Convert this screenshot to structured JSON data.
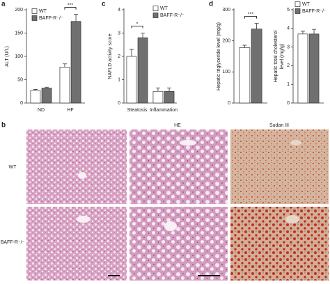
{
  "chart_data": [
    {
      "type": "bar",
      "panel_label": "a",
      "ylabel": "ALT (U/L)",
      "categories": [
        "ND",
        "HF"
      ],
      "series": [
        {
          "name": "WT",
          "color": "#ffffff",
          "values": [
            27,
            77
          ],
          "errors": [
            2,
            7
          ]
        },
        {
          "name": "BAFF-R⁻/⁻",
          "color": "#707070",
          "values": [
            32,
            175
          ],
          "errors": [
            2,
            15
          ]
        }
      ],
      "ylim": [
        0,
        200
      ],
      "yticks": [
        0,
        50,
        100,
        150,
        200
      ],
      "legend": true,
      "annotation": "***"
    },
    {
      "type": "bar",
      "panel_label": "c",
      "ylabel": "NAFLD activity score",
      "categories": [
        "Steatosis",
        "Inflammation"
      ],
      "series": [
        {
          "name": "WT",
          "color": "#ffffff",
          "values": [
            2.0,
            0.5
          ],
          "errors": [
            0.3,
            0.15
          ]
        },
        {
          "name": "BAFF-R⁻/⁻",
          "color": "#707070",
          "values": [
            2.8,
            0.5
          ],
          "errors": [
            0.2,
            0.15
          ]
        }
      ],
      "ylim": [
        0,
        4
      ],
      "yticks": [
        0,
        1,
        2,
        3,
        4
      ],
      "legend": true,
      "annotation": "*"
    },
    {
      "type": "bar",
      "panel_label": "d",
      "ylabel": "Hepatic triglyceride level (mg/g)",
      "categories": [
        null
      ],
      "series": [
        {
          "name": "WT",
          "color": "#ffffff",
          "values": [
            178
          ],
          "errors": [
            8
          ]
        },
        {
          "name": "BAFF-R⁻/⁻",
          "color": "#707070",
          "values": [
            238
          ],
          "errors": [
            18
          ]
        }
      ],
      "ylim": [
        0,
        300
      ],
      "yticks": [
        0,
        100,
        200,
        300
      ],
      "legend": false,
      "annotation": "***"
    },
    {
      "type": "bar",
      "ylabel": [
        "Hepatic total cholesterol",
        "level (mg/g)"
      ],
      "categories": [
        null
      ],
      "series": [
        {
          "name": "WT",
          "color": "#ffffff",
          "values": [
            3.7
          ],
          "errors": [
            0.15
          ]
        },
        {
          "name": "BAFF-R⁻/⁻",
          "color": "#707070",
          "values": [
            3.7
          ],
          "errors": [
            0.25
          ]
        }
      ],
      "ylim": [
        0,
        5
      ],
      "yticks": [
        0,
        1,
        2,
        3,
        4,
        5
      ],
      "legend": true
    }
  ],
  "panel_b": {
    "label": "b",
    "columns": [
      "HE",
      "Sudan III"
    ],
    "rows": [
      "WT",
      "BAFF-R⁻/⁻"
    ]
  }
}
